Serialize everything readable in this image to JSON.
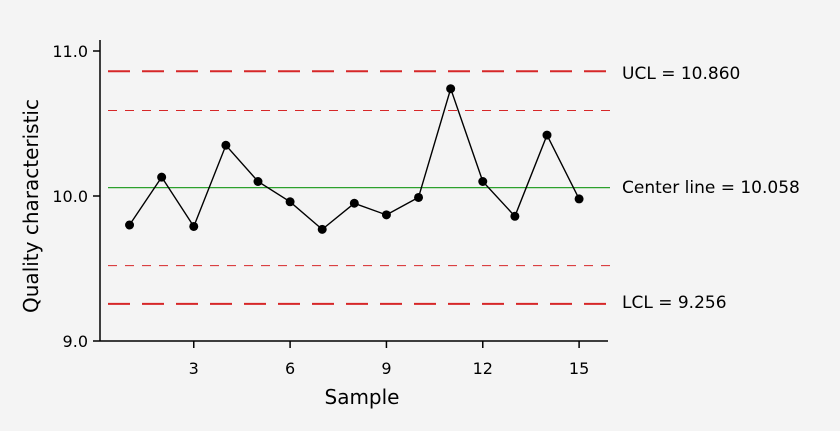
{
  "chart_data": {
    "type": "line",
    "xlabel": "Sample",
    "ylabel": "Quality characteristic",
    "x": [
      1,
      2,
      3,
      4,
      5,
      6,
      7,
      8,
      9,
      10,
      11,
      12,
      13,
      14,
      15
    ],
    "series": [
      {
        "values": [
          9.8,
          10.13,
          9.79,
          10.35,
          10.1,
          9.96,
          9.77,
          9.95,
          9.87,
          9.99,
          10.74,
          10.1,
          9.86,
          10.42,
          9.98
        ]
      }
    ],
    "xlim": [
      0.08,
      15.9
    ],
    "ylim": [
      9.0,
      11.0
    ],
    "xticks": [
      3,
      6,
      9,
      12,
      15
    ],
    "xtick_labels": [
      "3",
      "6",
      "9",
      "12",
      "15"
    ],
    "yticks": [
      9.0,
      10.0,
      11.0
    ],
    "ytick_labels": [
      "9.0",
      "10.0",
      "11.0"
    ],
    "reference_lines": {
      "ucl": {
        "value": 10.86,
        "label": "UCL = 10.860",
        "color": "#d62728",
        "style": "long-dash"
      },
      "center": {
        "value": 10.058,
        "label": "Center line = 10.058",
        "color": "#2ca02c",
        "style": "solid"
      },
      "lcl": {
        "value": 9.256,
        "label": "LCL = 9.256",
        "color": "#d62728",
        "style": "long-dash"
      },
      "upper_warning": {
        "value": 10.59,
        "color": "#d62728",
        "style": "short-dash"
      },
      "lower_warning": {
        "value": 9.52,
        "color": "#d62728",
        "style": "short-dash"
      }
    },
    "grid": false,
    "line_color": "#000000",
    "marker_color": "#000000"
  }
}
